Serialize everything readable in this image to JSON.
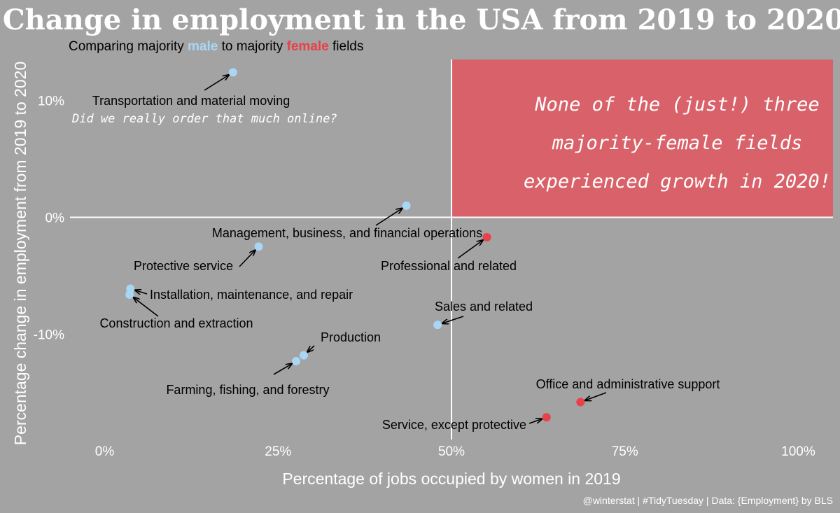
{
  "title": "Change in employment in the USA from 2019 to 2020",
  "subtitle": {
    "before": "Comparing majority ",
    "male": "male",
    "middle": " to majority ",
    "female": "female",
    "after": " fields"
  },
  "caption": "@winterstat | #TidyTuesday | Data: {Employment} by BLS",
  "highlight_note": [
    "None of the (just!) three",
    "majority-female fields",
    "experienced growth in 2020!"
  ],
  "side_note": "Did we really order that much online?",
  "chart_data": {
    "type": "scatter",
    "title": "Change in employment in the USA from 2019 to 2020",
    "xlabel": "Percentage of jobs occupied by women in 2019",
    "ylabel": "Percentage change in employment from 2019 to 2020",
    "xlim": [
      -0.05,
      1.05
    ],
    "ylim": [
      -0.19,
      0.135
    ],
    "x_ticks": [
      0,
      0.25,
      0.5,
      0.75,
      1.0
    ],
    "x_tick_labels": [
      "0%",
      "25%",
      "50%",
      "75%",
      "100%"
    ],
    "y_ticks": [
      0.1,
      0,
      -0.1
    ],
    "y_tick_labels": [
      "10%",
      "0%",
      "-10%"
    ],
    "reference_lines": {
      "x": 0.5,
      "y": 0
    },
    "colors": {
      "male": "#a9d6f5",
      "female": "#e8414a",
      "highlight": "#d9626a",
      "background": "#a3a3a3"
    },
    "points": [
      {
        "label": "Transportation and material moving",
        "x": 0.185,
        "y": 0.124,
        "group": "male"
      },
      {
        "label": "Management, business, and financial operations",
        "x": 0.435,
        "y": 0.01,
        "group": "male"
      },
      {
        "label": "Professional and related",
        "x": 0.551,
        "y": -0.017,
        "group": "female"
      },
      {
        "label": "Protective service",
        "x": 0.222,
        "y": -0.025,
        "group": "male"
      },
      {
        "label": "Installation, maintenance, and repair",
        "x": 0.037,
        "y": -0.061,
        "group": "male"
      },
      {
        "label": "Construction and extraction",
        "x": 0.036,
        "y": -0.066,
        "group": "male"
      },
      {
        "label": "Sales and related",
        "x": 0.48,
        "y": -0.092,
        "group": "male"
      },
      {
        "label": "Production",
        "x": 0.287,
        "y": -0.118,
        "group": "male"
      },
      {
        "label": "Farming, fishing, and forestry",
        "x": 0.276,
        "y": -0.123,
        "group": "male"
      },
      {
        "label": "Office and administrative support",
        "x": 0.686,
        "y": -0.158,
        "group": "female"
      },
      {
        "label": "Service, except protective",
        "x": 0.637,
        "y": -0.171,
        "group": "female"
      }
    ]
  }
}
